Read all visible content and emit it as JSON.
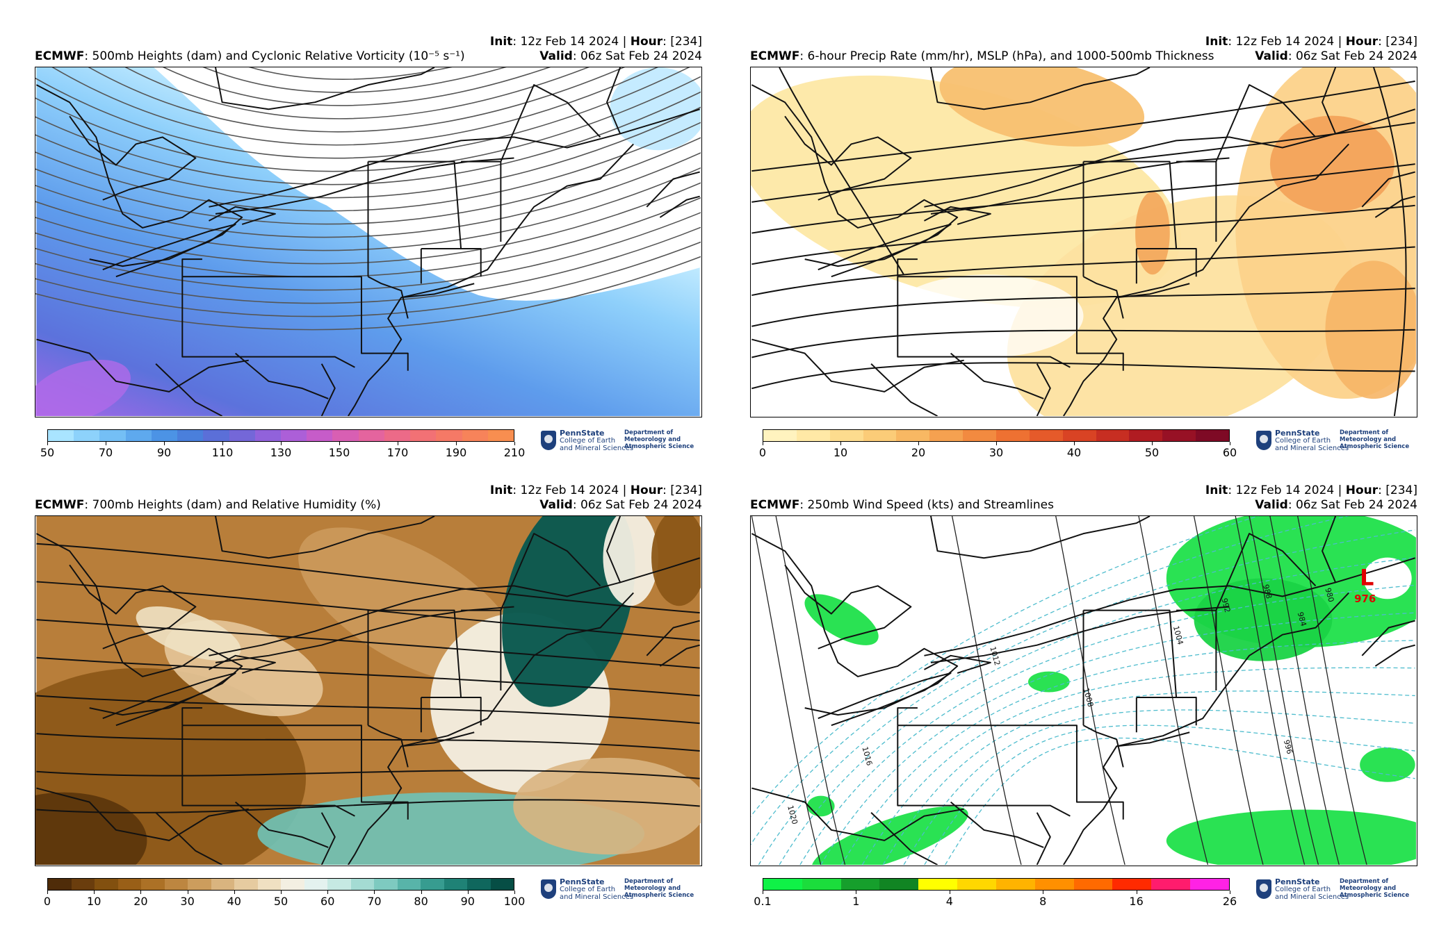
{
  "logo": {
    "name": "PennState",
    "college_line1": "College of Earth",
    "college_line2": "and Mineral Sciences",
    "dept_line1": "Department of",
    "dept_line2": "Meteorology and",
    "dept_line3": "Atmospheric Science"
  },
  "panels": [
    {
      "init_label": "Init",
      "init_value": ": 12z Feb 14 2024 | ",
      "hour_label": "Hour",
      "hour_value": ": [234]",
      "model": "ECMWF",
      "title": ": 500mb Heights (dam) and Cyclonic Relative Vorticity (10⁻⁵ s⁻¹)",
      "valid_label": "Valid",
      "valid_value": ": 06z Sat Feb 24 2024",
      "colorbar_ticks": [
        "50",
        "70",
        "90",
        "110",
        "130",
        "150",
        "170",
        "190",
        "210"
      ],
      "colorbar_colors": [
        "#a9e4ff",
        "#8dd2fb",
        "#74bff5",
        "#5ea9ee",
        "#4c93e5",
        "#4a7fdc",
        "#5b6fd8",
        "#7467d8",
        "#9162db",
        "#ac5fd8",
        "#c65cc9",
        "#d85fb3",
        "#e4649e",
        "#ec6a88",
        "#f27175",
        "#f57966",
        "#f7835a",
        "#f88e50"
      ]
    },
    {
      "init_label": "Init",
      "init_value": ": 12z Feb 14 2024 | ",
      "hour_label": "Hour",
      "hour_value": ": [234]",
      "model": "ECMWF",
      "title": ": 6-hour Precip Rate (mm/hr), MSLP (hPa), and 1000-500mb Thickness",
      "valid_label": "Valid",
      "valid_value": ": 06z Sat Feb 24 2024",
      "colorbar_ticks": [
        "0",
        "10",
        "20",
        "30",
        "40",
        "50",
        "60"
      ],
      "colorbar_colors": [
        "#fff3bf",
        "#ffe9a6",
        "#fddc8e",
        "#fbcc78",
        "#f8b863",
        "#f5a150",
        "#f28a40",
        "#ee7132",
        "#e55a2a",
        "#d94324",
        "#c72e22",
        "#b01c22",
        "#971125",
        "#7e0a25"
      ]
    },
    {
      "init_label": "Init",
      "init_value": ": 12z Feb 14 2024 | ",
      "hour_label": "Hour",
      "hour_value": ": [234]",
      "model": "ECMWF",
      "title": ": 700mb Heights (dam) and Relative Humidity (%)",
      "valid_label": "Valid",
      "valid_value": ": 06z Sat Feb 24 2024",
      "colorbar_ticks": [
        "0",
        "10",
        "20",
        "30",
        "40",
        "50",
        "60",
        "70",
        "80",
        "90",
        "100"
      ],
      "colorbar_colors": [
        "#4f2c09",
        "#6a3d0d",
        "#82500f",
        "#995f17",
        "#ac7126",
        "#bd8640",
        "#cc9d5d",
        "#d9b47f",
        "#e6cba0",
        "#f0e0c2",
        "#f3efe2",
        "#e4f2ef",
        "#c6e9e3",
        "#a4dbd3",
        "#7ecac0",
        "#58b4a9",
        "#379c90",
        "#1f8276",
        "#0f675d",
        "#064e45"
      ]
    },
    {
      "init_label": "Init",
      "init_value": ": 12z Feb 14 2024 | ",
      "hour_label": "Hour",
      "hour_value": ": [234]",
      "model": "ECMWF",
      "title": ": 250mb Wind Speed (kts) and Streamlines",
      "valid_label": "Valid",
      "valid_value": ": 06z Sat Feb 24 2024",
      "colorbar_ticks": [
        "0.1",
        "1",
        "4",
        "8",
        "16",
        "26"
      ],
      "colorbar_colors": [
        "#0ff247",
        "#1bdd3c",
        "#169f2c",
        "#118523",
        "#ffff00",
        "#ffd700",
        "#ffb300",
        "#ff9000",
        "#ff6a00",
        "#ff2a00",
        "#ff1c6d",
        "#ff22e5"
      ],
      "low_label": "L",
      "low_value": "976",
      "isobar_labels": [
        "1012",
        "1008",
        "1004",
        "1016",
        "1020",
        "992",
        "988",
        "984",
        "980",
        "996"
      ]
    }
  ]
}
